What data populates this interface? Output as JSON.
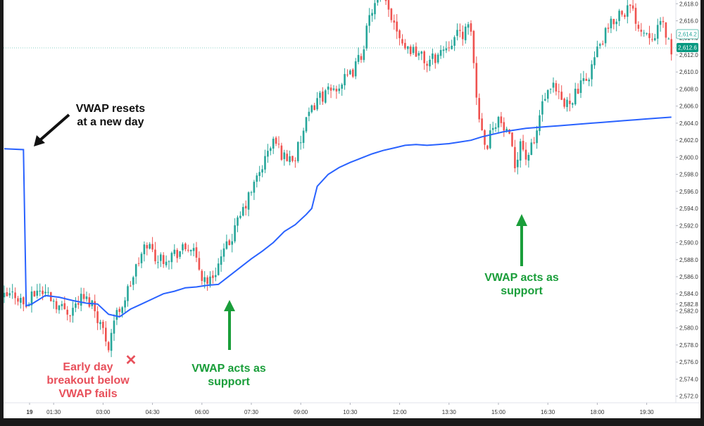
{
  "chart_data": {
    "type": "candlestick",
    "price_axis": {
      "ticks": [
        "2,572.0",
        "2,574.0",
        "2,576.0",
        "2,578.0",
        "2,580.0",
        "2,582.0",
        "2,582.8",
        "2,584.0",
        "2,586.0",
        "2,588.0",
        "2,590.0",
        "2,592.0",
        "2,594.0",
        "2,596.0",
        "2,598.0",
        "2,600.0",
        "2,602.0",
        "2,604.0",
        "2,606.0",
        "2,608.0",
        "2,610.0",
        "2,612.0",
        "2,614.0",
        "2,616.0",
        "2,618.0"
      ],
      "last_price_label": "2,612.6",
      "marker_label": "2,614.2",
      "last_price": 2612.6,
      "marker_price": 2614.2
    },
    "time_axis": {
      "ticks": [
        {
          "label": "19",
          "bar": 0
        },
        {
          "label": "01:30",
          "bar": 18
        },
        {
          "label": "03:00",
          "bar": 36
        },
        {
          "label": "04:30",
          "bar": 54
        },
        {
          "label": "06:00",
          "bar": 72
        },
        {
          "label": "07:30",
          "bar": 90
        },
        {
          "label": "09:00",
          "bar": 108
        },
        {
          "label": "10:30",
          "bar": 126
        },
        {
          "label": "12:00",
          "bar": 144
        },
        {
          "label": "13:30",
          "bar": 162
        },
        {
          "label": "15:00",
          "bar": 180
        },
        {
          "label": "16:30",
          "bar": 198
        },
        {
          "label": "18:00",
          "bar": 216
        },
        {
          "label": "19:30",
          "bar": 234
        }
      ]
    },
    "price_anchors": [
      [
        0,
        2583.5
      ],
      [
        4,
        2584.0
      ],
      [
        8,
        2582.5
      ],
      [
        12,
        2584.5
      ],
      [
        16,
        2584.0
      ],
      [
        20,
        2582.5
      ],
      [
        24,
        2582.0
      ],
      [
        28,
        2583.5
      ],
      [
        32,
        2583.0
      ],
      [
        35,
        2580.5
      ],
      [
        38,
        2578.0
      ],
      [
        40,
        2581.0
      ],
      [
        44,
        2583.5
      ],
      [
        48,
        2587.0
      ],
      [
        52,
        2590.0
      ],
      [
        56,
        2588.0
      ],
      [
        60,
        2588.5
      ],
      [
        64,
        2589.0
      ],
      [
        68,
        2589.5
      ],
      [
        72,
        2586.0
      ],
      [
        75,
        2585.5
      ],
      [
        78,
        2587.5
      ],
      [
        82,
        2590.0
      ],
      [
        86,
        2593.0
      ],
      [
        90,
        2596.0
      ],
      [
        94,
        2599.0
      ],
      [
        98,
        2602.0
      ],
      [
        102,
        2600.0
      ],
      [
        106,
        2600.0
      ],
      [
        110,
        2604.0
      ],
      [
        114,
        2607.0
      ],
      [
        118,
        2607.5
      ],
      [
        122,
        2608.5
      ],
      [
        126,
        2609.5
      ],
      [
        130,
        2612.0
      ],
      [
        134,
        2617.5
      ],
      [
        138,
        2618.5
      ],
      [
        142,
        2616.0
      ],
      [
        146,
        2613.0
      ],
      [
        150,
        2612.5
      ],
      [
        154,
        2611.0
      ],
      [
        158,
        2612.0
      ],
      [
        162,
        2613.5
      ],
      [
        166,
        2614.5
      ],
      [
        170,
        2615.0
      ],
      [
        172,
        2607.0
      ],
      [
        174,
        2603.0
      ],
      [
        176,
        2601.5
      ],
      [
        178,
        2604.0
      ],
      [
        180,
        2604.5
      ],
      [
        184,
        2602.0
      ],
      [
        186,
        2599.0
      ],
      [
        188,
        2602.0
      ],
      [
        190,
        2600.0
      ],
      [
        193,
        2601.5
      ],
      [
        196,
        2606.5
      ],
      [
        200,
        2608.0
      ],
      [
        204,
        2606.0
      ],
      [
        208,
        2607.5
      ],
      [
        212,
        2609.0
      ],
      [
        216,
        2612.5
      ],
      [
        220,
        2615.0
      ],
      [
        224,
        2617.0
      ],
      [
        228,
        2617.5
      ],
      [
        232,
        2615.0
      ],
      [
        236,
        2614.5
      ],
      [
        240,
        2615.5
      ],
      [
        243,
        2612.6
      ]
    ],
    "vwap": [
      [
        0,
        2601.0
      ],
      [
        7,
        2600.9
      ],
      [
        8,
        2582.6
      ],
      [
        10,
        2582.8
      ],
      [
        15,
        2583.8
      ],
      [
        20,
        2583.6
      ],
      [
        25,
        2583.2
      ],
      [
        30,
        2582.9
      ],
      [
        34,
        2582.8
      ],
      [
        38,
        2581.6
      ],
      [
        42,
        2581.3
      ],
      [
        46,
        2582.2
      ],
      [
        50,
        2582.8
      ],
      [
        54,
        2583.4
      ],
      [
        58,
        2584.0
      ],
      [
        62,
        2584.3
      ],
      [
        66,
        2584.7
      ],
      [
        70,
        2584.8
      ],
      [
        74,
        2585.0
      ],
      [
        78,
        2585.1
      ],
      [
        82,
        2586.1
      ],
      [
        86,
        2587.1
      ],
      [
        90,
        2588.1
      ],
      [
        94,
        2589.0
      ],
      [
        98,
        2590.0
      ],
      [
        102,
        2591.3
      ],
      [
        106,
        2592.1
      ],
      [
        110,
        2593.3
      ],
      [
        112,
        2594.0
      ],
      [
        114,
        2596.6
      ],
      [
        118,
        2598.0
      ],
      [
        122,
        2598.8
      ],
      [
        126,
        2599.4
      ],
      [
        130,
        2599.9
      ],
      [
        134,
        2600.4
      ],
      [
        138,
        2600.8
      ],
      [
        142,
        2601.1
      ],
      [
        146,
        2601.4
      ],
      [
        150,
        2601.5
      ],
      [
        154,
        2601.4
      ],
      [
        158,
        2601.5
      ],
      [
        162,
        2601.6
      ],
      [
        166,
        2601.8
      ],
      [
        170,
        2602.0
      ],
      [
        174,
        2602.4
      ],
      [
        178,
        2602.7
      ],
      [
        182,
        2603.0
      ],
      [
        186,
        2603.2
      ],
      [
        190,
        2603.4
      ],
      [
        194,
        2603.5
      ],
      [
        198,
        2603.6
      ],
      [
        202,
        2603.7
      ],
      [
        206,
        2603.8
      ],
      [
        210,
        2603.9
      ],
      [
        214,
        2604.0
      ],
      [
        218,
        2604.1
      ],
      [
        222,
        2604.2
      ],
      [
        226,
        2604.3
      ],
      [
        230,
        2604.4
      ],
      [
        234,
        2604.5
      ],
      [
        238,
        2604.6
      ],
      [
        243,
        2604.7
      ]
    ],
    "colors": {
      "up": "#26a69a",
      "down": "#ef5350",
      "vwap": "#2962ff",
      "support": "#1a9e3a",
      "fail": "#e8505b",
      "last_price": "#089981"
    }
  },
  "annotations": {
    "reset_line1": "VWAP resets",
    "reset_line2": "at a new day",
    "support1_line1": "VWAP acts as",
    "support1_line2": "support",
    "support2_line1": "VWAP acts as",
    "support2_line2": "support",
    "fail_line1": "Early day",
    "fail_line2": "breakout below",
    "fail_line3": "VWAP fails",
    "fail_marker": "✕"
  }
}
